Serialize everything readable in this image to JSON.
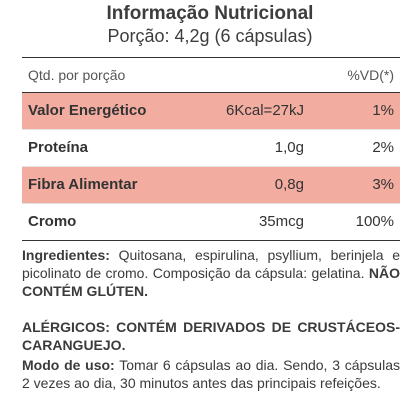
{
  "header": {
    "title": "Informação Nutricional",
    "portion": "Porção: 4,2g (6 cápsulas)"
  },
  "table": {
    "col_qty": "Qtd. por porção",
    "col_vd": "%VD(*)",
    "rows": [
      {
        "name": "Valor Energético",
        "amount": "6Kcal=27kJ",
        "vd": "1%",
        "highlight": true
      },
      {
        "name": "Proteína",
        "amount": "1,0g",
        "vd": "2%",
        "highlight": false
      },
      {
        "name": "Fibra Alimentar",
        "amount": "0,8g",
        "vd": "3%",
        "highlight": true
      },
      {
        "name": "Cromo",
        "amount": "35mcg",
        "vd": "100%",
        "highlight": false
      }
    ],
    "highlight_color": "#f2aca0"
  },
  "ingredients": {
    "label": "Ingredientes:",
    "text": " Quitosana, espirulina, psyllium, berinjela e picolinato de cromo. Composição da cápsula: gelatina. ",
    "gluten": "NÃO CONTÉM GLÚTEN."
  },
  "allergens": {
    "text": "ALÉRGICOS: CONTÉM DERIVADOS DE CRUSTÁCEOS-CARANGUEJO."
  },
  "usage": {
    "label": "Modo de uso:",
    "text": " Tomar 6 cápsulas ao dia. Sendo, 3 cápsulas 2 vezes ao dia, 30 minutos antes das principais refeições."
  }
}
